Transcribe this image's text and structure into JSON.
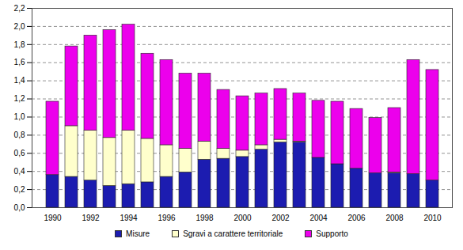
{
  "chart_data": {
    "type": "bar",
    "stacked": true,
    "grid": true,
    "legend": "bottom",
    "categories": [
      "1990",
      null,
      "1992",
      null,
      "1994",
      null,
      "1996",
      null,
      "1998",
      null,
      "2000",
      null,
      "2002",
      null,
      "2004",
      null,
      "2006",
      null,
      "2008",
      null,
      "2010"
    ],
    "series": [
      {
        "name": "Misure",
        "color": "#1c1cb0",
        "values": [
          0.36,
          0.34,
          0.3,
          0.24,
          0.26,
          0.28,
          0.34,
          0.39,
          0.53,
          0.54,
          0.56,
          0.64,
          0.72,
          0.72,
          0.55,
          0.48,
          0.43,
          0.38,
          0.38,
          0.37,
          0.3
        ]
      },
      {
        "name": "Sgravi a carattere territoriale",
        "color": "#ffffcc",
        "values": [
          0,
          0.56,
          0.55,
          0.53,
          0.59,
          0.48,
          0.35,
          0.26,
          0.2,
          0.11,
          0.07,
          0.05,
          0.03,
          0.01,
          0,
          0,
          0,
          0,
          0.01,
          0,
          0
        ]
      },
      {
        "name": "Supporto",
        "color": "#ec00ec",
        "values": [
          0.81,
          0.88,
          1.05,
          1.19,
          1.17,
          0.94,
          0.94,
          0.83,
          0.75,
          0.65,
          0.6,
          0.57,
          0.56,
          0.53,
          0.63,
          0.69,
          0.66,
          0.61,
          0.71,
          1.26,
          1.22
        ]
      }
    ],
    "ylim": [
      0,
      2.2
    ],
    "yticks": [
      {
        "value": 0,
        "label": "0,0"
      },
      {
        "value": 0.2,
        "label": "0,2"
      },
      {
        "value": 0.4,
        "label": "0,4"
      },
      {
        "value": 0.6,
        "label": "0,6"
      },
      {
        "value": 0.8,
        "label": "0,8"
      },
      {
        "value": 1.0,
        "label": "1,0"
      },
      {
        "value": 1.2,
        "label": "1,2"
      },
      {
        "value": 1.4,
        "label": "1,4"
      },
      {
        "value": 1.6,
        "label": "1,6"
      },
      {
        "value": 1.8,
        "label": "1,8"
      },
      {
        "value": 2.0,
        "label": "2,0"
      },
      {
        "value": 2.2,
        "label": "2,2"
      }
    ]
  }
}
